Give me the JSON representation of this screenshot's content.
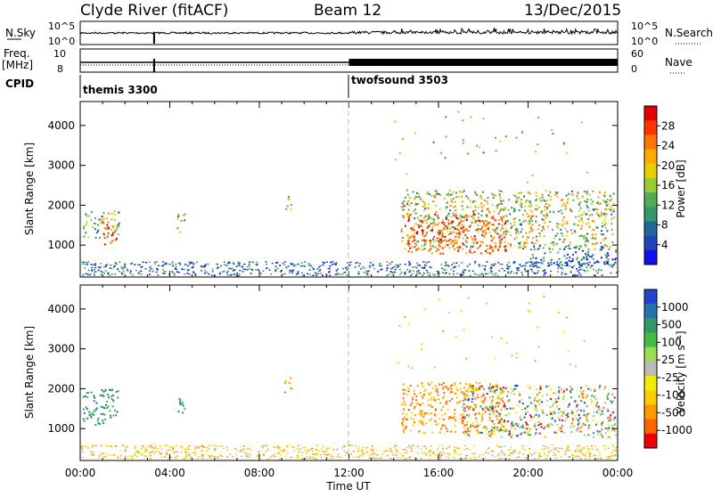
{
  "header": {
    "site": "Clyde River (fitACF)",
    "beam": "Beam 12",
    "date": "13/Dec/2015"
  },
  "strips": {
    "nsky_label": "N.Sky",
    "nsky_ticks": [
      "10^5",
      "10^0"
    ],
    "nsearch_label": "N.Search",
    "nsearch_ticks": [
      "10^5",
      "10^0"
    ],
    "freq_label": "Freq.",
    "freq_unit": "[MHz]",
    "freq_ticks": [
      "10",
      "8"
    ],
    "nave_label": "Nave",
    "nave_ticks": [
      "60",
      "0"
    ],
    "cpid_label": "CPID",
    "cpid_segments": [
      {
        "name": "themis 3300",
        "start_hour": 0
      },
      {
        "name": "twofsound 3503",
        "start_hour": 12.0
      }
    ]
  },
  "chart_data": [
    {
      "type": "heatmap",
      "name": "power",
      "xlabel": "",
      "ylabel": "Slant Range [km]",
      "x_unit": "hours UT",
      "xlim": [
        0,
        24
      ],
      "ylim": [
        200,
        4600
      ],
      "x_ticks": [
        "00:00",
        "04:00",
        "08:00",
        "12:00",
        "16:00",
        "20:00",
        "00:00"
      ],
      "y_ticks": [
        1000,
        2000,
        3000,
        4000
      ],
      "colorbar": {
        "label": "Power [dB]",
        "ticks": [
          "28",
          "24",
          "20",
          "16",
          "12",
          "8",
          "4"
        ],
        "colors": [
          "#e00000",
          "#ff3300",
          "#ff7700",
          "#ffaa00",
          "#e8d000",
          "#99cc33",
          "#55aa55",
          "#339966",
          "#226699",
          "#2244bb",
          "#1111ee"
        ]
      },
      "echo_regions": [
        {
          "t0": 0.1,
          "t1": 1.7,
          "r0": 1200,
          "r1": 1900,
          "level": "mid"
        },
        {
          "t0": 1.0,
          "t1": 1.6,
          "r0": 1000,
          "r1": 1600,
          "level": "high"
        },
        {
          "t0": 4.3,
          "t1": 4.7,
          "r0": 1300,
          "r1": 1800,
          "level": "mid"
        },
        {
          "t0": 9.1,
          "t1": 9.4,
          "r0": 1900,
          "r1": 2300,
          "level": "mid"
        },
        {
          "t0": 14.3,
          "t1": 23.8,
          "r0": 900,
          "r1": 2400,
          "level": "mid"
        },
        {
          "t0": 14.6,
          "t1": 19.0,
          "r0": 800,
          "r1": 1800,
          "level": "high"
        },
        {
          "t0": 20.0,
          "t1": 23.9,
          "r0": 500,
          "r1": 1000,
          "level": "low"
        }
      ]
    },
    {
      "type": "heatmap",
      "name": "velocity",
      "xlabel": "Time UT",
      "ylabel": "Slant Range [km]",
      "x_unit": "hours UT",
      "xlim": [
        0,
        24
      ],
      "ylim": [
        200,
        4600
      ],
      "x_ticks": [
        "00:00",
        "04:00",
        "08:00",
        "12:00",
        "16:00",
        "20:00",
        "00:00"
      ],
      "y_ticks": [
        1000,
        2000,
        3000,
        4000
      ],
      "colorbar": {
        "label": "Velocity [m s⁻¹]",
        "ticks": [
          "1000",
          "500",
          "100",
          "25",
          "-25",
          "-100",
          "-500",
          "-1000"
        ],
        "colors": [
          "#2244cc",
          "#2277aa",
          "#339966",
          "#44bb44",
          "#99dd55",
          "#bbbbbb",
          "#eeee00",
          "#ffcc00",
          "#ff9900",
          "#ff6600",
          "#ee0000"
        ]
      },
      "echo_regions": [
        {
          "t0": 0.1,
          "t1": 1.7,
          "r0": 1100,
          "r1": 2000,
          "level": "toward"
        },
        {
          "t0": 4.3,
          "t1": 4.7,
          "r0": 1300,
          "r1": 1800,
          "level": "toward"
        },
        {
          "t0": 9.1,
          "t1": 9.4,
          "r0": 1900,
          "r1": 2300,
          "level": "away"
        },
        {
          "t0": 14.3,
          "t1": 19.0,
          "r0": 900,
          "r1": 2200,
          "level": "away"
        },
        {
          "t0": 17.0,
          "t1": 23.9,
          "r0": 800,
          "r1": 2100,
          "level": "mixed"
        }
      ]
    }
  ]
}
